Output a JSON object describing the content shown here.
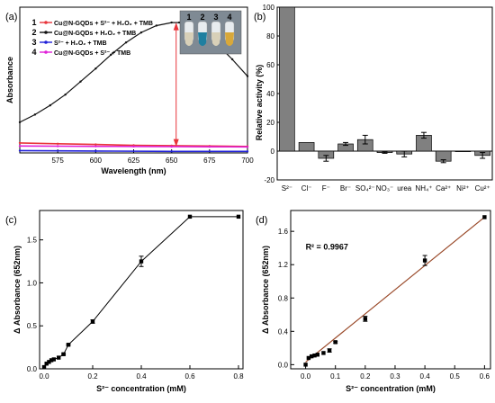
{
  "chart_data": [
    {
      "panel": "(a)",
      "type": "line",
      "xlabel": "Wavelength (nm)",
      "ylabel": "Absorbance",
      "xlim": [
        550,
        700
      ],
      "ylim": [
        0,
        1.9
      ],
      "xticks": [
        575,
        600,
        625,
        650,
        675,
        700
      ],
      "grid": false,
      "legend_position": "top-left",
      "inset": {
        "labels": [
          "1",
          "2",
          "3",
          "4"
        ],
        "colors": [
          "#d8d0b8",
          "#1f7fa0",
          "#d8d0b8",
          "#d8a83a"
        ]
      },
      "series": [
        {
          "name": "Cu@N-GQDs + S²⁻ + H₂O₂ + TMB",
          "legend_num": "1",
          "color": "#e8343a",
          "x": [
            550,
            575,
            600,
            625,
            650,
            675,
            700
          ],
          "y": [
            0.13,
            0.12,
            0.11,
            0.1,
            0.095,
            0.09,
            0.085
          ]
        },
        {
          "name": "Cu@N-GQDs + H₂O₂ + TMB",
          "legend_num": "2",
          "color": "#111111",
          "x": [
            550,
            560,
            570,
            580,
            590,
            600,
            610,
            620,
            630,
            640,
            650,
            655,
            660,
            670,
            680,
            690,
            700
          ],
          "y": [
            0.4,
            0.5,
            0.62,
            0.76,
            0.93,
            1.1,
            1.28,
            1.44,
            1.57,
            1.66,
            1.7,
            1.7,
            1.68,
            1.58,
            1.42,
            1.22,
            1.0
          ]
        },
        {
          "name": "S²⁻ + H₂O₂ + TMB",
          "legend_num": "3",
          "color": "#2020d8",
          "x": [
            550,
            600,
            650,
            700
          ],
          "y": [
            0.03,
            0.025,
            0.02,
            0.02
          ]
        },
        {
          "name": "Cu@N-GQDs + S²⁻ + TMB",
          "legend_num": "4",
          "color": "#e020d8",
          "x": [
            550,
            575,
            600,
            625,
            650,
            675,
            700
          ],
          "y": [
            0.09,
            0.088,
            0.086,
            0.084,
            0.082,
            0.08,
            0.078
          ]
        }
      ]
    },
    {
      "panel": "(b)",
      "type": "bar",
      "ylabel": "Relative activity (%)",
      "ylim": [
        -20,
        100
      ],
      "yticks": [
        -20,
        0,
        20,
        40,
        60,
        80,
        100
      ],
      "bar_color": "#808080",
      "categories": [
        "S²⁻",
        "Cl⁻",
        "F⁻",
        "Br⁻",
        "SO₄²⁻",
        "NO₃⁻",
        "urea",
        "NH₄⁺",
        "Ca²⁺",
        "Ni²⁺",
        "Cu²⁺"
      ],
      "values": [
        100,
        6,
        -5,
        5,
        8,
        -1,
        -2,
        11,
        -7,
        0,
        -3
      ],
      "errors": [
        0,
        0,
        2,
        1,
        3,
        0.5,
        2,
        2,
        1,
        0,
        2
      ]
    },
    {
      "panel": "(c)",
      "type": "line",
      "xlabel": "S²⁻ concentration (mM)",
      "ylabel": "Δ Absorbance (652nm)",
      "xlim": [
        0,
        0.8
      ],
      "ylim": [
        0,
        1.8
      ],
      "xticks": [
        0.0,
        0.2,
        0.4,
        0.6,
        0.8
      ],
      "yticks": [
        0.0,
        0.5,
        1.0,
        1.5
      ],
      "x": [
        0,
        0.01,
        0.02,
        0.03,
        0.04,
        0.06,
        0.08,
        0.1,
        0.2,
        0.4,
        0.6,
        0.8
      ],
      "y": [
        0.02,
        0.06,
        0.08,
        0.1,
        0.11,
        0.13,
        0.17,
        0.28,
        0.55,
        1.25,
        1.77,
        1.77
      ],
      "errors": [
        0,
        0,
        0,
        0,
        0,
        0,
        0.01,
        0.01,
        0.02,
        0.06,
        0,
        0
      ]
    },
    {
      "panel": "(d)",
      "type": "scatter",
      "xlabel": "S²⁻ concentration (mM)",
      "ylabel": "Δ Absorbance (652nm)",
      "xlim": [
        -0.05,
        0.62
      ],
      "ylim": [
        -0.05,
        1.85
      ],
      "xticks": [
        0.0,
        0.1,
        0.2,
        0.3,
        0.4,
        0.5,
        0.6
      ],
      "yticks": [
        0.0,
        0.4,
        0.8,
        1.2,
        1.6
      ],
      "annotation": "R² = 0.9967",
      "fit_color": "#9a4a2a",
      "fit": {
        "x": [
          0,
          0.6
        ],
        "y": [
          0.03,
          1.77
        ]
      },
      "x": [
        0,
        0.01,
        0.02,
        0.03,
        0.04,
        0.06,
        0.08,
        0.1,
        0.2,
        0.4,
        0.6
      ],
      "y": [
        0.0,
        0.08,
        0.1,
        0.11,
        0.12,
        0.14,
        0.17,
        0.27,
        0.55,
        1.25,
        1.77
      ],
      "errors": [
        0,
        0,
        0,
        0,
        0,
        0,
        0.02,
        0.01,
        0.03,
        0.06,
        0
      ]
    }
  ]
}
